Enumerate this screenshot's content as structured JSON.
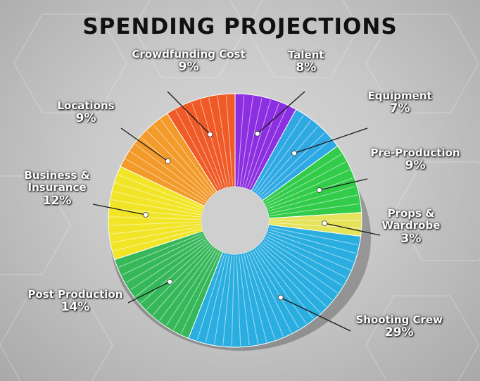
{
  "chart_data": {
    "type": "pie",
    "title": "SPENDING PROJECTIONS",
    "slices": [
      {
        "label": "Talent",
        "value": 8,
        "value_label": "8%",
        "color": "#8c2fe0"
      },
      {
        "label": "Equipment",
        "value": 7,
        "value_label": "7%",
        "color": "#2fa9e3"
      },
      {
        "label": "Pre-Production",
        "value": 9,
        "value_label": "9%",
        "color": "#32cc4a"
      },
      {
        "label": "Props & Wardrobe",
        "label_lines": [
          "Props &",
          "Wardrobe"
        ],
        "value": 3,
        "value_label": "3%",
        "color": "#e5e35a"
      },
      {
        "label": "Shooting Crew",
        "value": 29,
        "value_label": "29%",
        "color": "#2aaee0"
      },
      {
        "label": "Post Production",
        "value": 14,
        "value_label": "14%",
        "color": "#36b85a"
      },
      {
        "label": "Business & Insurance",
        "label_lines": [
          "Business &",
          "Insurance"
        ],
        "value": 12,
        "value_label": "12%",
        "color": "#f2e528"
      },
      {
        "label": "Locations",
        "value": 9,
        "value_label": "9%",
        "color": "#f29a2a"
      },
      {
        "label": "Crowdfunding Cost",
        "value": 9,
        "value_label": "9%",
        "color": "#ef5a26"
      }
    ]
  }
}
